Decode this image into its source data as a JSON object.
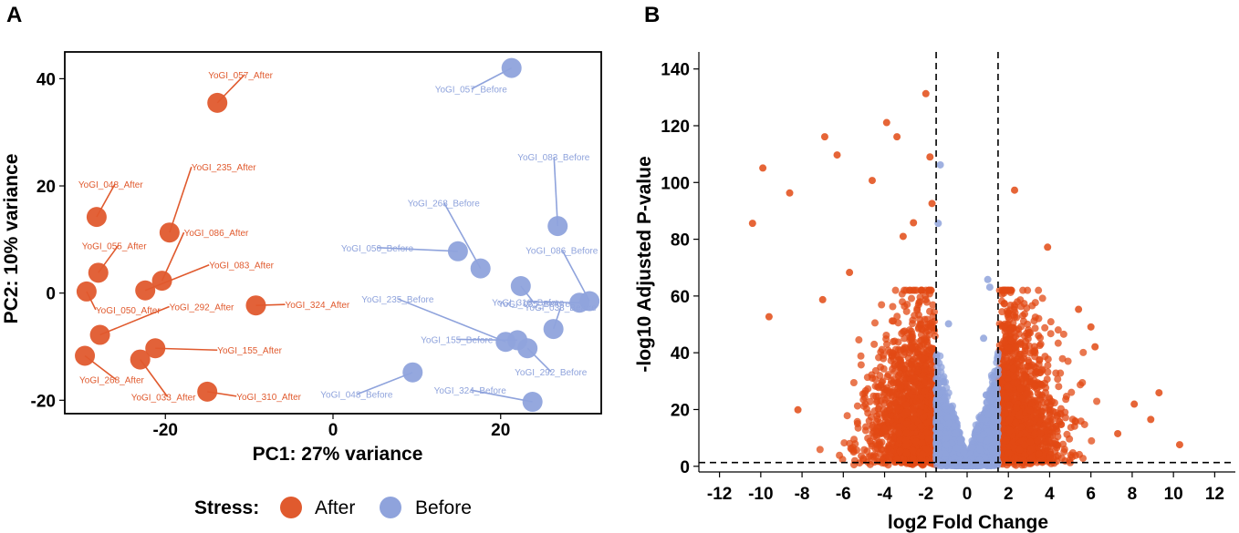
{
  "colors": {
    "after": "#E05A2E",
    "before": "#8FA3DC",
    "volcano_sig": "#E24A14",
    "volcano_ns": "#8FA3DC"
  },
  "chart_data": [
    {
      "panel": "A",
      "type": "scatter",
      "title": "",
      "xlabel": "PC1: 27% variance",
      "ylabel": "PC2: 10% variance",
      "xlim": [
        -32,
        32
      ],
      "ylim": [
        -22.5,
        45
      ],
      "xticks": [
        "-20",
        "0",
        "20"
      ],
      "yticks": [
        "-20",
        "0",
        "20",
        "40"
      ],
      "legend": {
        "title": "Stress:",
        "entries": [
          "After",
          "Before"
        ],
        "position": "bottom"
      },
      "series": [
        {
          "name": "After",
          "points": [
            {
              "label": "YoGI_057_After",
              "x": -13.8,
              "y": 35.5
            },
            {
              "label": "YoGI_048_After",
              "x": -28.2,
              "y": 14.2
            },
            {
              "label": "YoGI_235_After",
              "x": -19.5,
              "y": 11.3
            },
            {
              "label": "YoGI_055_After",
              "x": -28.0,
              "y": 3.8
            },
            {
              "label": "YoGI_086_After",
              "x": -20.4,
              "y": 2.3
            },
            {
              "label": "YoGI_083_After",
              "x": -22.4,
              "y": 0.5
            },
            {
              "label": "YoGI_050_After",
              "x": -29.4,
              "y": 0.3
            },
            {
              "label": "YoGI_324_After",
              "x": -9.2,
              "y": -2.3
            },
            {
              "label": "YoGI_292_After",
              "x": -27.8,
              "y": -7.8
            },
            {
              "label": "YoGI_155_After",
              "x": -21.2,
              "y": -10.3
            },
            {
              "label": "YoGI_268_After",
              "x": -29.6,
              "y": -11.7
            },
            {
              "label": "YoGI_033_After",
              "x": -23.0,
              "y": -12.4
            },
            {
              "label": "YoGI_310_After",
              "x": -15.0,
              "y": -18.4
            }
          ]
        },
        {
          "name": "Before",
          "points": [
            {
              "label": "YoGI_057_Before",
              "x": 21.3,
              "y": 42.0
            },
            {
              "label": "YoGI_083_Before",
              "x": 26.8,
              "y": 12.5
            },
            {
              "label": "YoGI_050_Before",
              "x": 14.9,
              "y": 7.8
            },
            {
              "label": "YoGI_268_Before",
              "x": 17.6,
              "y": 4.6
            },
            {
              "label": "YoGI_055_Before",
              "x": 22.4,
              "y": 1.3
            },
            {
              "label": "YoGI_086_Before",
              "x": 30.6,
              "y": -1.5
            },
            {
              "label": "YoGI_310_Before",
              "x": 29.4,
              "y": -1.8
            },
            {
              "label": "YoGI_033_Before",
              "x": 26.3,
              "y": -6.7
            },
            {
              "label": "YoGI_235_Before",
              "x": 20.6,
              "y": -9.1
            },
            {
              "label": "YoGI_155_Before",
              "x": 22.0,
              "y": -8.8
            },
            {
              "label": "YoGI_292_Before",
              "x": 23.2,
              "y": -10.3
            },
            {
              "label": "YoGI_048_Before",
              "x": 9.5,
              "y": -14.8
            },
            {
              "label": "YoGI_324_Before",
              "x": 23.8,
              "y": -20.3
            }
          ]
        }
      ]
    },
    {
      "panel": "B",
      "type": "scatter",
      "title": "",
      "xlabel": "log2 Fold Change",
      "ylabel": "-log10 Adjusted P-value",
      "xlim": [
        -13,
        13
      ],
      "ylim": [
        -2,
        146
      ],
      "xticks": [
        "-12",
        "-10",
        "-8",
        "-6",
        "-4",
        "-2",
        "0",
        "2",
        "4",
        "6",
        "8",
        "10",
        "12"
      ],
      "yticks": [
        "0",
        "20",
        "40",
        "60",
        "80",
        "100",
        "120",
        "140"
      ],
      "thresholds": {
        "log2fc": [
          -1.5,
          1.5
        ],
        "neg_log10_p": 1.3
      },
      "series": [
        {
          "name": "significant",
          "summary": "dense cloud for |log2FC| > 1.5, y 0–~60 near threshold",
          "highlighted_points": [
            {
              "x": -10.4,
              "y": 85.6
            },
            {
              "x": -9.9,
              "y": 105.1
            },
            {
              "x": -8.6,
              "y": 96.3
            },
            {
              "x": -6.9,
              "y": 116.1
            },
            {
              "x": -6.3,
              "y": 109.7
            },
            {
              "x": -4.6,
              "y": 100.7
            },
            {
              "x": -3.9,
              "y": 121.1
            },
            {
              "x": -3.4,
              "y": 116.1
            },
            {
              "x": -2.0,
              "y": 131.3
            },
            {
              "x": -1.8,
              "y": 109.0
            },
            {
              "x": 2.3,
              "y": 97.3
            },
            {
              "x": 3.9,
              "y": 77.2
            },
            {
              "x": -2.6,
              "y": 85.8
            },
            {
              "x": -3.1,
              "y": 81.0
            },
            {
              "x": -1.7,
              "y": 92.6
            },
            {
              "x": 10.3,
              "y": 7.6
            },
            {
              "x": 9.3,
              "y": 25.9
            },
            {
              "x": 8.9,
              "y": 16.5
            },
            {
              "x": -9.6,
              "y": 52.7
            },
            {
              "x": -8.2,
              "y": 19.9
            },
            {
              "x": -5.7,
              "y": 68.3
            },
            {
              "x": -7.0,
              "y": 58.7
            },
            {
              "x": 5.4,
              "y": 55.3
            },
            {
              "x": 6.0,
              "y": 49.1
            },
            {
              "x": 6.2,
              "y": 42.1
            },
            {
              "x": 8.1,
              "y": 21.9
            },
            {
              "x": 7.3,
              "y": 11.5
            }
          ]
        },
        {
          "name": "not-significant",
          "summary": "dense V-shaped cloud for |log2FC| <= 1.5",
          "highlighted_points": [
            {
              "x": -1.4,
              "y": 85.6
            },
            {
              "x": -1.3,
              "y": 106.2
            },
            {
              "x": 1.0,
              "y": 65.8
            },
            {
              "x": 1.1,
              "y": 63.1
            },
            {
              "x": -0.9,
              "y": 50.2
            },
            {
              "x": 0.8,
              "y": 45.1
            }
          ]
        }
      ]
    }
  ]
}
